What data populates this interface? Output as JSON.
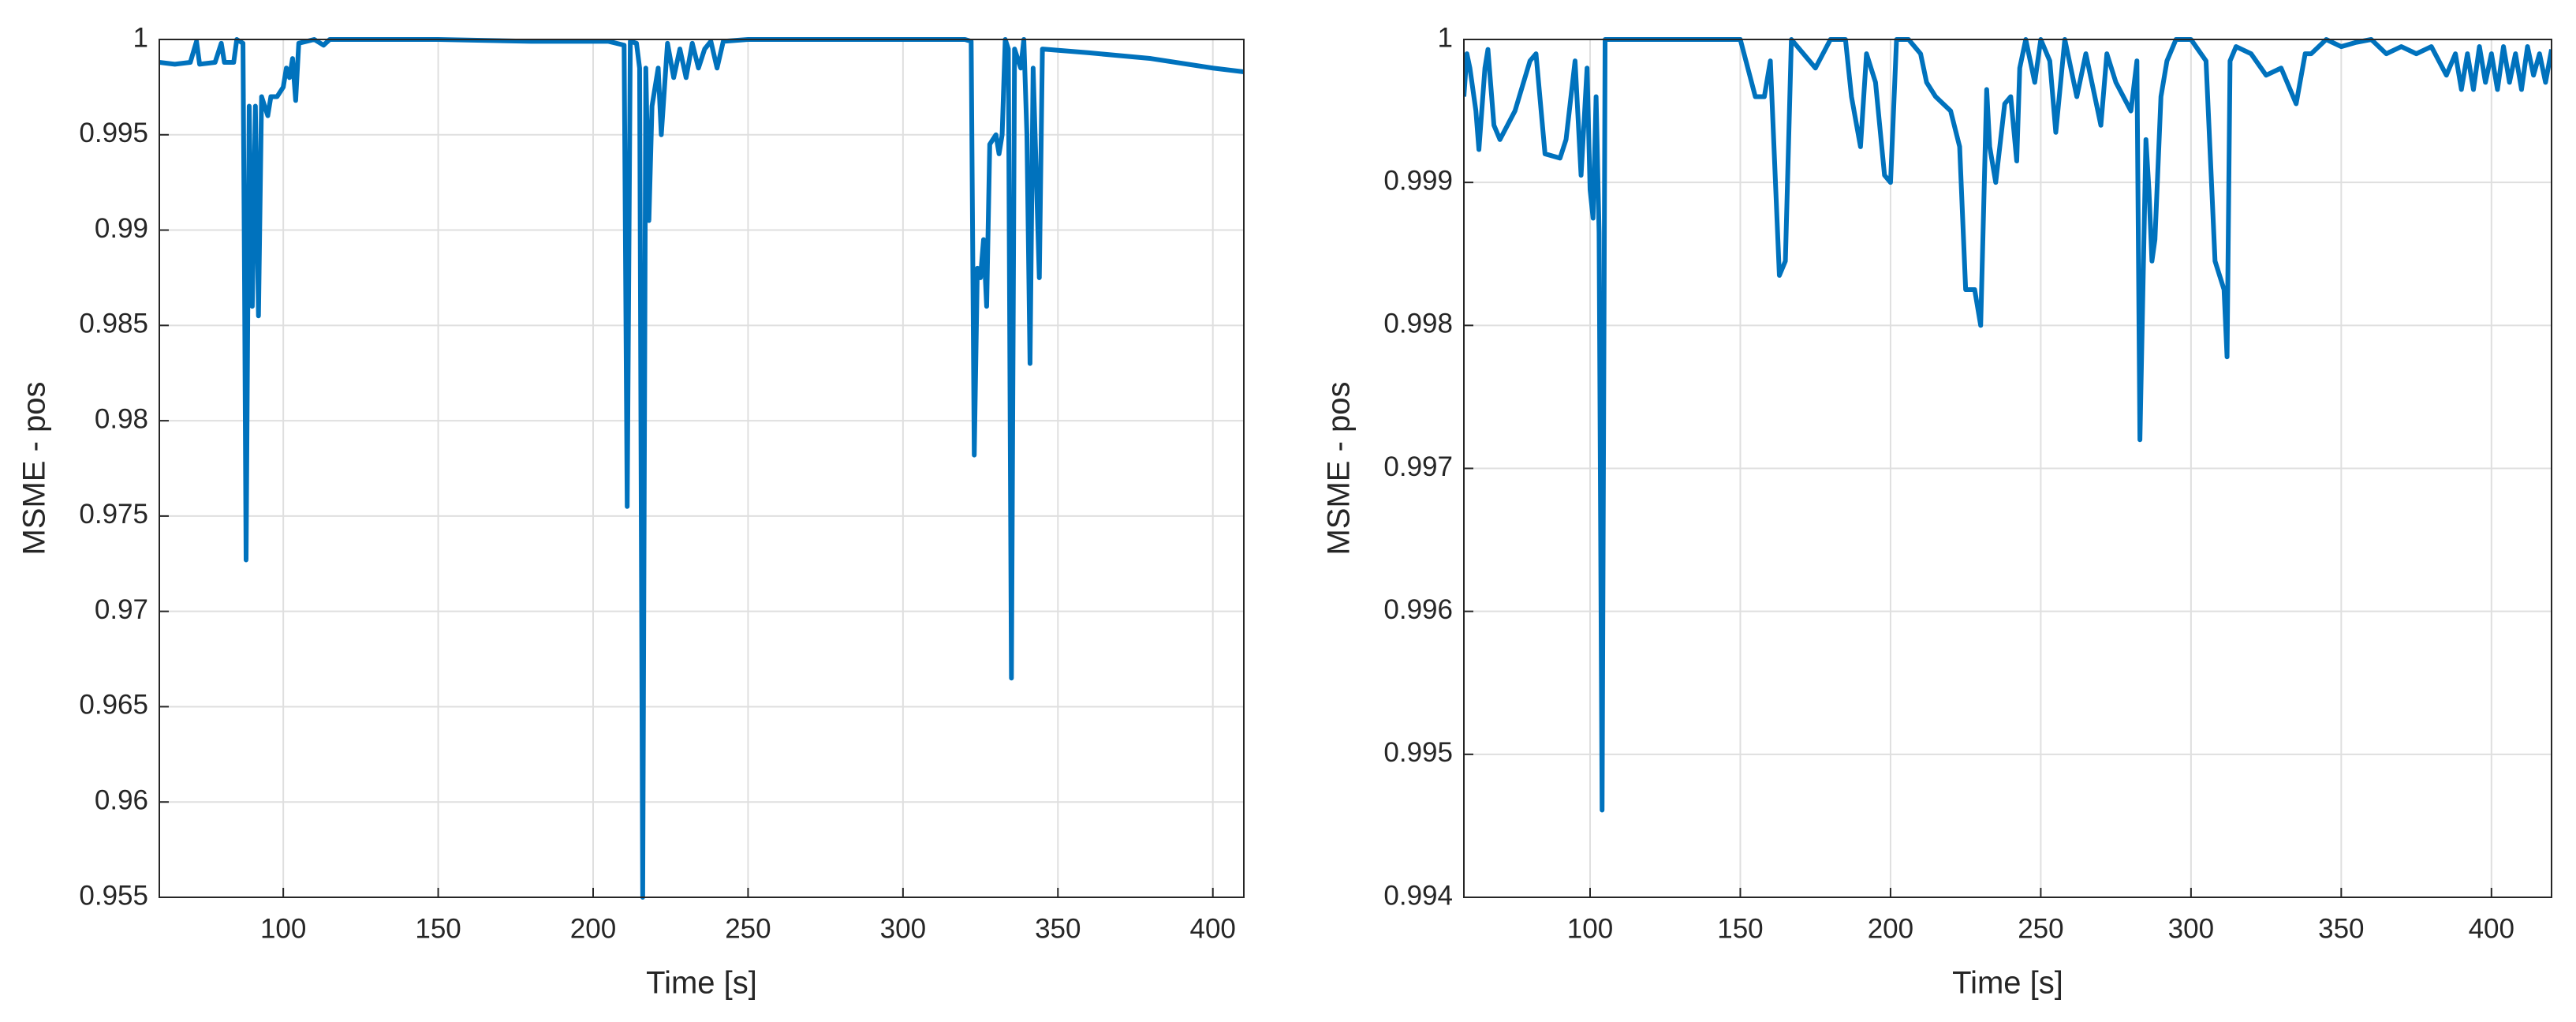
{
  "chart_data": [
    {
      "type": "line",
      "xlabel": "Time [s]",
      "ylabel": "MSME - pos",
      "color": "#0072bd",
      "grid": true,
      "xlim": [
        60,
        410
      ],
      "xticks": [
        100,
        150,
        200,
        250,
        300,
        350,
        400
      ],
      "ylim": [
        0.955,
        1
      ],
      "yticks": [
        0.955,
        0.96,
        0.965,
        0.97,
        0.975,
        0.98,
        0.985,
        0.99,
        0.995,
        1
      ],
      "x": [
        60,
        65,
        70,
        72,
        73,
        78,
        80,
        81,
        84,
        85,
        87,
        87.5,
        88,
        89,
        90,
        91,
        92,
        93,
        95,
        96,
        98,
        100,
        101,
        102,
        103,
        104,
        105,
        110,
        113,
        115,
        150,
        180,
        205,
        210,
        211,
        212,
        214,
        215,
        216,
        217,
        218,
        219,
        220,
        221,
        222,
        224,
        226,
        228,
        230,
        232,
        234,
        236,
        238,
        240,
        242,
        250,
        300,
        320,
        322,
        323,
        324,
        325,
        326,
        327,
        328,
        330,
        331,
        332,
        333,
        334,
        335,
        336,
        338,
        339,
        340,
        341,
        342,
        344,
        345,
        360,
        380,
        400,
        410
      ],
      "values": [
        0.9988,
        0.9987,
        0.9988,
        0.9999,
        0.9987,
        0.9988,
        0.9998,
        0.9988,
        0.9988,
        1.0,
        0.9998,
        0.9873,
        0.9727,
        0.9965,
        0.986,
        0.9965,
        0.9855,
        0.997,
        0.996,
        0.997,
        0.997,
        0.9975,
        0.9985,
        0.998,
        0.999,
        0.9968,
        0.9998,
        1.0,
        0.9997,
        1.0,
        1.0,
        0.9999,
        0.9999,
        0.9997,
        0.9755,
        0.9999,
        0.9998,
        0.9985,
        0.955,
        0.9985,
        0.9905,
        0.9965,
        0.9975,
        0.9985,
        0.995,
        0.9998,
        0.998,
        0.9995,
        0.998,
        0.9998,
        0.9985,
        0.9995,
        0.9999,
        0.9985,
        0.9999,
        1.0,
        1.0,
        1.0,
        0.9999,
        0.9782,
        0.988,
        0.9875,
        0.9895,
        0.986,
        0.9945,
        0.995,
        0.994,
        0.995,
        1.0,
        0.9995,
        0.9665,
        0.9995,
        0.9985,
        1.0,
        0.995,
        0.983,
        0.9985,
        0.9875,
        0.9995,
        0.9993,
        0.999,
        0.9985,
        0.9983
      ]
    },
    {
      "type": "line",
      "xlabel": "Time [s]",
      "ylabel": "MSME - pos",
      "color": "#0072bd",
      "grid": true,
      "xlim": [
        58,
        420
      ],
      "xticks": [
        100,
        150,
        200,
        250,
        300,
        350,
        400
      ],
      "ylim": [
        0.994,
        1
      ],
      "yticks": [
        0.994,
        0.995,
        0.996,
        0.997,
        0.998,
        0.999,
        1
      ],
      "x": [
        58,
        59,
        60,
        62,
        63,
        65,
        66,
        68,
        70,
        75,
        80,
        82,
        85,
        90,
        92,
        95,
        97,
        99,
        100,
        101,
        102,
        103,
        104,
        105,
        120,
        150,
        155,
        158,
        160,
        163,
        165,
        167,
        175,
        180,
        185,
        187,
        190,
        192,
        195,
        198,
        200,
        202,
        206,
        208,
        210,
        212,
        215,
        220,
        223,
        225,
        228,
        230,
        232,
        233,
        235,
        238,
        240,
        242,
        243,
        245,
        248,
        250,
        253,
        255,
        258,
        262,
        265,
        270,
        272,
        275,
        280,
        282,
        283,
        285,
        286,
        287,
        288,
        290,
        292,
        295,
        300,
        305,
        308,
        311,
        312,
        313,
        315,
        320,
        325,
        330,
        335,
        338,
        340,
        345,
        350,
        355,
        360,
        365,
        370,
        375,
        380,
        385,
        388,
        390,
        392,
        394,
        396,
        398,
        400,
        402,
        404,
        406,
        408,
        410,
        412,
        414,
        416,
        418,
        420
      ],
      "values": [
        0.9996,
        0.9999,
        0.9998,
        0.9995,
        0.99923,
        0.9998,
        0.99993,
        0.9994,
        0.9993,
        0.9995,
        0.99985,
        0.9999,
        0.9992,
        0.99917,
        0.9993,
        0.99985,
        0.99905,
        0.9998,
        0.99895,
        0.99875,
        0.9996,
        0.99865,
        0.99461,
        1.0,
        1.0,
        1.0,
        0.9996,
        0.9996,
        0.99985,
        0.99835,
        0.99845,
        1.0,
        0.9998,
        1.0,
        1.0,
        0.9996,
        0.99925,
        0.9999,
        0.9997,
        0.99905,
        0.999,
        1.0,
        1.0,
        0.99995,
        0.9999,
        0.9997,
        0.9996,
        0.9995,
        0.99925,
        0.99825,
        0.99825,
        0.998,
        0.99965,
        0.99925,
        0.999,
        0.99955,
        0.9996,
        0.99915,
        0.9998,
        1.0,
        0.9997,
        1.0,
        0.99985,
        0.99935,
        1.0,
        0.9996,
        0.9999,
        0.9994,
        0.9999,
        0.9997,
        0.9995,
        0.99985,
        0.9972,
        0.9993,
        0.99895,
        0.99845,
        0.9986,
        0.9996,
        0.99985,
        1.0,
        1.0,
        0.99985,
        0.99845,
        0.99825,
        0.99778,
        0.99985,
        0.99995,
        0.9999,
        0.99975,
        0.9998,
        0.99955,
        0.9999,
        0.9999,
        1.0,
        0.99995,
        0.99998,
        1.0,
        0.9999,
        0.99995,
        0.9999,
        0.99995,
        0.99975,
        0.9999,
        0.99965,
        0.9999,
        0.99965,
        0.99995,
        0.9997,
        0.9999,
        0.99965,
        0.99995,
        0.9997,
        0.9999,
        0.99965,
        0.99995,
        0.99975,
        0.9999,
        0.9997,
        0.99993
      ]
    }
  ]
}
